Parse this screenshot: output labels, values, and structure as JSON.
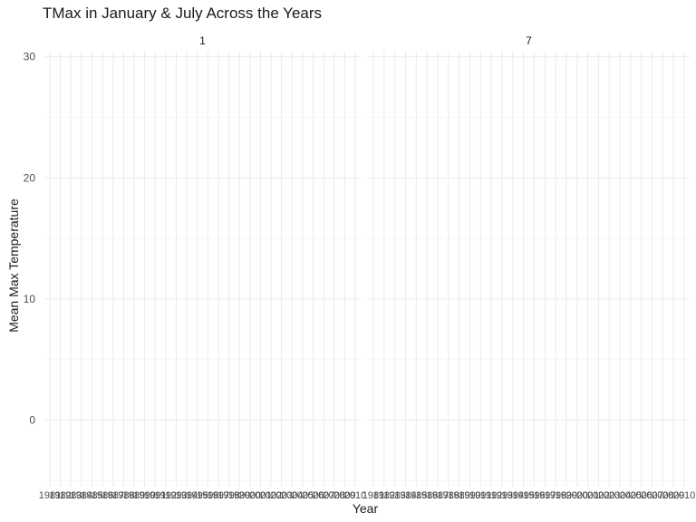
{
  "chart_data": {
    "type": "line",
    "title": "TMax in January & July Across the Years",
    "xlabel": "Year",
    "ylabel": "Mean Max Temperature",
    "facets": [
      "1",
      "7"
    ],
    "x": [
      "1981",
      "1982",
      "1983",
      "1984",
      "1985",
      "1986",
      "1987",
      "1988",
      "1989",
      "1990",
      "1991",
      "1992",
      "1993",
      "1994",
      "1995",
      "1996",
      "1997",
      "1998",
      "1999",
      "2000",
      "2001",
      "2002",
      "2003",
      "2004",
      "2005",
      "2006",
      "2007",
      "2008",
      "2009",
      "2010"
    ],
    "ylim": [
      -5.5,
      30.5
    ],
    "yticks": [
      "0",
      "10",
      "20",
      "30"
    ],
    "ytick_values": [
      0,
      10,
      20,
      30
    ],
    "series": [],
    "grid": true,
    "legend": "none"
  }
}
